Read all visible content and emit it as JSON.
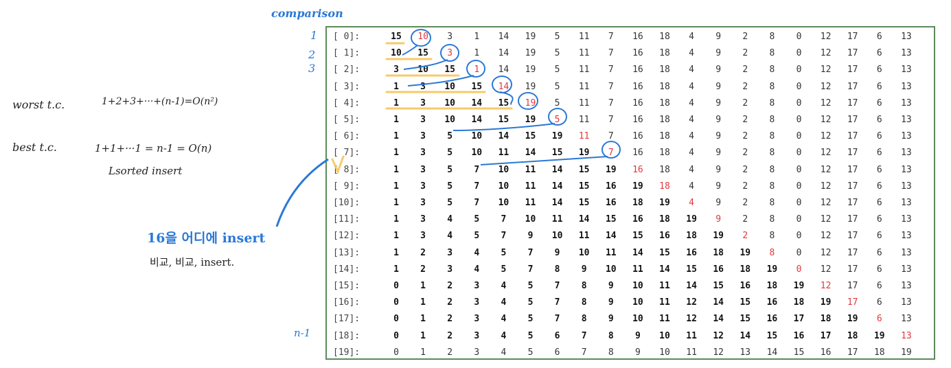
{
  "notes": {
    "header": "comparison",
    "worst": "worst t.c.",
    "worst_formula": "1+2+3+···+(n-1)=O(n²)",
    "best": "best t.c.",
    "best_formula": "1+1+···1 = n-1 = O(n)",
    "best_sub": "Lsorted insert",
    "korean": "16을 어디에 insert",
    "korean_sub": "비교, 비교, insert.",
    "side_numbers": [
      "1",
      "2",
      "3"
    ],
    "n_minus_1": "n-1"
  },
  "colors": {
    "bold": "#111111",
    "red": "#e0383d",
    "normal": "#333333",
    "ink": "#2a78d6",
    "highlight": "#f7c55a"
  },
  "table": {
    "rows": [
      {
        "label": "[ 0]:",
        "values": [
          15,
          10,
          3,
          1,
          14,
          19,
          5,
          11,
          7,
          16,
          18,
          4,
          9,
          2,
          8,
          0,
          12,
          17,
          6,
          13
        ],
        "bold": 1,
        "red": 1
      },
      {
        "label": "[ 1]:",
        "values": [
          10,
          15,
          3,
          1,
          14,
          19,
          5,
          11,
          7,
          16,
          18,
          4,
          9,
          2,
          8,
          0,
          12,
          17,
          6,
          13
        ],
        "bold": 2,
        "red": 2
      },
      {
        "label": "[ 2]:",
        "values": [
          3,
          10,
          15,
          1,
          14,
          19,
          5,
          11,
          7,
          16,
          18,
          4,
          9,
          2,
          8,
          0,
          12,
          17,
          6,
          13
        ],
        "bold": 3,
        "red": 3
      },
      {
        "label": "[ 3]:",
        "values": [
          1,
          3,
          10,
          15,
          14,
          19,
          5,
          11,
          7,
          16,
          18,
          4,
          9,
          2,
          8,
          0,
          12,
          17,
          6,
          13
        ],
        "bold": 4,
        "red": 4
      },
      {
        "label": "[ 4]:",
        "values": [
          1,
          3,
          10,
          14,
          15,
          19,
          5,
          11,
          7,
          16,
          18,
          4,
          9,
          2,
          8,
          0,
          12,
          17,
          6,
          13
        ],
        "bold": 5,
        "red": 5
      },
      {
        "label": "[ 5]:",
        "values": [
          1,
          3,
          10,
          14,
          15,
          19,
          5,
          11,
          7,
          16,
          18,
          4,
          9,
          2,
          8,
          0,
          12,
          17,
          6,
          13
        ],
        "bold": 6,
        "red": 6
      },
      {
        "label": "[ 6]:",
        "values": [
          1,
          3,
          5,
          10,
          14,
          15,
          19,
          11,
          7,
          16,
          18,
          4,
          9,
          2,
          8,
          0,
          12,
          17,
          6,
          13
        ],
        "bold": 7,
        "red": 7
      },
      {
        "label": "[ 7]:",
        "values": [
          1,
          3,
          5,
          10,
          11,
          14,
          15,
          19,
          7,
          16,
          18,
          4,
          9,
          2,
          8,
          0,
          12,
          17,
          6,
          13
        ],
        "bold": 8,
        "red": 8
      },
      {
        "label": "[ 8]:",
        "values": [
          1,
          3,
          5,
          7,
          10,
          11,
          14,
          15,
          19,
          16,
          18,
          4,
          9,
          2,
          8,
          0,
          12,
          17,
          6,
          13
        ],
        "bold": 9,
        "red": 9
      },
      {
        "label": "[ 9]:",
        "values": [
          1,
          3,
          5,
          7,
          10,
          11,
          14,
          15,
          16,
          19,
          18,
          4,
          9,
          2,
          8,
          0,
          12,
          17,
          6,
          13
        ],
        "bold": 10,
        "red": 10
      },
      {
        "label": "[10]:",
        "values": [
          1,
          3,
          5,
          7,
          10,
          11,
          14,
          15,
          16,
          18,
          19,
          4,
          9,
          2,
          8,
          0,
          12,
          17,
          6,
          13
        ],
        "bold": 11,
        "red": 11
      },
      {
        "label": "[11]:",
        "values": [
          1,
          3,
          4,
          5,
          7,
          10,
          11,
          14,
          15,
          16,
          18,
          19,
          9,
          2,
          8,
          0,
          12,
          17,
          6,
          13
        ],
        "bold": 12,
        "red": 12
      },
      {
        "label": "[12]:",
        "values": [
          1,
          3,
          4,
          5,
          7,
          9,
          10,
          11,
          14,
          15,
          16,
          18,
          19,
          2,
          8,
          0,
          12,
          17,
          6,
          13
        ],
        "bold": 13,
        "red": 13
      },
      {
        "label": "[13]:",
        "values": [
          1,
          2,
          3,
          4,
          5,
          7,
          9,
          10,
          11,
          14,
          15,
          16,
          18,
          19,
          8,
          0,
          12,
          17,
          6,
          13
        ],
        "bold": 14,
        "red": 14
      },
      {
        "label": "[14]:",
        "values": [
          1,
          2,
          3,
          4,
          5,
          7,
          8,
          9,
          10,
          11,
          14,
          15,
          16,
          18,
          19,
          0,
          12,
          17,
          6,
          13
        ],
        "bold": 15,
        "red": 15
      },
      {
        "label": "[15]:",
        "values": [
          0,
          1,
          2,
          3,
          4,
          5,
          7,
          8,
          9,
          10,
          11,
          14,
          15,
          16,
          18,
          19,
          12,
          17,
          6,
          13
        ],
        "bold": 16,
        "red": 16
      },
      {
        "label": "[16]:",
        "values": [
          0,
          1,
          2,
          3,
          4,
          5,
          7,
          8,
          9,
          10,
          11,
          12,
          14,
          15,
          16,
          18,
          19,
          17,
          6,
          13
        ],
        "bold": 17,
        "red": 17
      },
      {
        "label": "[17]:",
        "values": [
          0,
          1,
          2,
          3,
          4,
          5,
          7,
          8,
          9,
          10,
          11,
          12,
          14,
          15,
          16,
          17,
          18,
          19,
          6,
          13
        ],
        "bold": 18,
        "red": 18
      },
      {
        "label": "[18]:",
        "values": [
          0,
          1,
          2,
          3,
          4,
          5,
          6,
          7,
          8,
          9,
          10,
          11,
          12,
          14,
          15,
          16,
          17,
          18,
          19,
          13
        ],
        "bold": 19,
        "red": 19
      },
      {
        "label": "[19]:",
        "values": [
          0,
          1,
          2,
          3,
          4,
          5,
          6,
          7,
          8,
          9,
          10,
          11,
          12,
          13,
          14,
          15,
          16,
          17,
          18,
          19
        ],
        "bold": 0,
        "red": -1
      }
    ]
  }
}
